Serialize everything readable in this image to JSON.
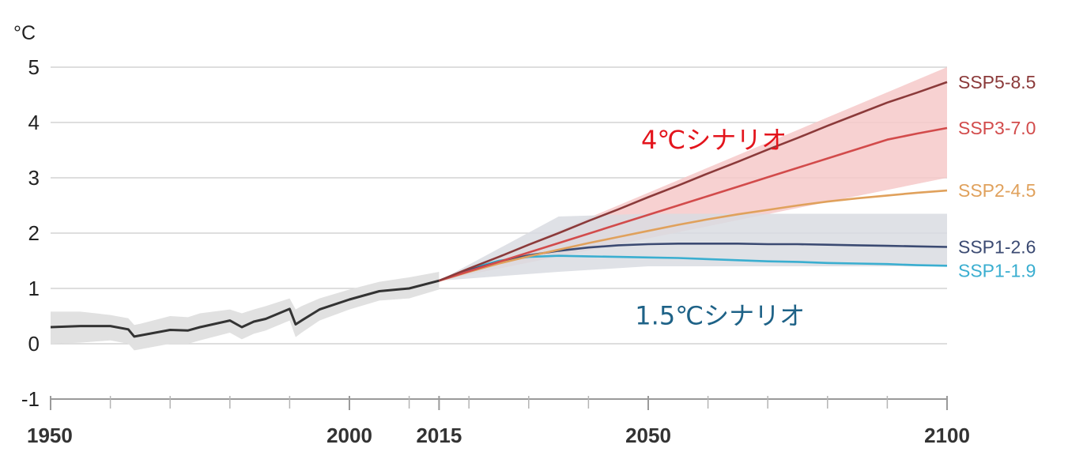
{
  "chart_data": {
    "type": "line",
    "ylabel": "°C",
    "xlim": [
      1950,
      2100
    ],
    "ylim": [
      -1,
      5
    ],
    "y_ticks": [
      "5",
      "4",
      "3",
      "2",
      "1",
      "0",
      "-1"
    ],
    "y_tick_values": [
      5,
      4,
      3,
      2,
      1,
      0,
      -1
    ],
    "x_ticks": [
      "1950",
      "2000",
      "2015",
      "2050",
      "2100"
    ],
    "x_tick_values": [
      1950,
      2000,
      2015,
      2050,
      2100
    ],
    "x_minor_ticks": [
      1960,
      1970,
      1980,
      1990,
      2010,
      2020,
      2030,
      2040,
      2060,
      2070,
      2080,
      2090
    ],
    "grid": true,
    "historical": {
      "color": "#333333",
      "x": [
        1950,
        1955,
        1960,
        1963,
        1964,
        1965,
        1970,
        1973,
        1975,
        1980,
        1982,
        1984,
        1986,
        1990,
        1991,
        1992,
        1995,
        2000,
        2005,
        2010,
        2015
      ],
      "y": [
        0.3,
        0.32,
        0.32,
        0.26,
        0.13,
        0.15,
        0.25,
        0.24,
        0.3,
        0.42,
        0.3,
        0.4,
        0.45,
        0.63,
        0.35,
        0.42,
        0.62,
        0.8,
        0.95,
        1.0,
        1.14
      ],
      "band_upper": [
        0.58,
        0.58,
        0.52,
        0.46,
        0.34,
        0.36,
        0.5,
        0.48,
        0.55,
        0.62,
        0.55,
        0.62,
        0.68,
        0.82,
        0.62,
        0.68,
        0.82,
        0.98,
        1.12,
        1.2,
        1.3
      ],
      "band_lower": [
        0.0,
        0.02,
        0.06,
        0.0,
        -0.12,
        -0.1,
        0.0,
        0.0,
        0.06,
        0.2,
        0.08,
        0.18,
        0.24,
        0.42,
        0.12,
        0.2,
        0.42,
        0.62,
        0.78,
        0.82,
        0.98
      ],
      "band_color": "#e1e1e1"
    },
    "bands": [
      {
        "color": "#f6c9c9",
        "x": [
          2015,
          2100
        ],
        "upper": [
          1.14,
          5.0
        ],
        "lower": [
          1.14,
          3.0
        ]
      },
      {
        "color": "#d9dce2",
        "x": [
          2015,
          2035,
          2050,
          2100
        ],
        "upper": [
          1.14,
          2.3,
          2.35,
          2.35
        ],
        "lower": [
          1.14,
          1.3,
          1.4,
          1.4
        ]
      }
    ],
    "x": [
      2015,
      2020,
      2025,
      2030,
      2035,
      2040,
      2045,
      2050,
      2055,
      2060,
      2065,
      2070,
      2075,
      2080,
      2085,
      2090,
      2095,
      2100
    ],
    "series": [
      {
        "name": "SSP5-8.5",
        "color": "#8b3a3a",
        "values": [
          1.14,
          1.36,
          1.57,
          1.79,
          2.0,
          2.22,
          2.43,
          2.65,
          2.86,
          3.08,
          3.29,
          3.51,
          3.72,
          3.94,
          4.15,
          4.36,
          4.54,
          4.73
        ]
      },
      {
        "name": "SSP3-7.0",
        "color": "#d24b4b",
        "values": [
          1.14,
          1.31,
          1.48,
          1.65,
          1.82,
          1.99,
          2.16,
          2.33,
          2.5,
          2.67,
          2.84,
          3.01,
          3.18,
          3.35,
          3.52,
          3.69,
          3.8,
          3.9
        ]
      },
      {
        "name": "SSP2-4.5",
        "color": "#e0a15c",
        "values": [
          1.14,
          1.3,
          1.45,
          1.58,
          1.7,
          1.82,
          1.93,
          2.04,
          2.15,
          2.25,
          2.34,
          2.42,
          2.5,
          2.57,
          2.63,
          2.68,
          2.73,
          2.77
        ]
      },
      {
        "name": "SSP1-2.6",
        "color": "#3b4a72",
        "values": [
          1.14,
          1.33,
          1.48,
          1.6,
          1.68,
          1.74,
          1.78,
          1.8,
          1.81,
          1.81,
          1.81,
          1.8,
          1.8,
          1.79,
          1.78,
          1.77,
          1.76,
          1.75
        ]
      },
      {
        "name": "SSP1-1.9",
        "color": "#3aaed0",
        "values": [
          1.14,
          1.35,
          1.5,
          1.57,
          1.59,
          1.58,
          1.57,
          1.56,
          1.55,
          1.53,
          1.51,
          1.49,
          1.48,
          1.46,
          1.45,
          1.44,
          1.42,
          1.41
        ]
      }
    ],
    "annotations": [
      {
        "text": "4℃シナリオ",
        "color": "#e3141c",
        "x": 2061,
        "y": 3.7
      },
      {
        "text": "1.5℃シナリオ",
        "color": "#1e6287",
        "x": 2062,
        "y": 0.52
      }
    ]
  }
}
